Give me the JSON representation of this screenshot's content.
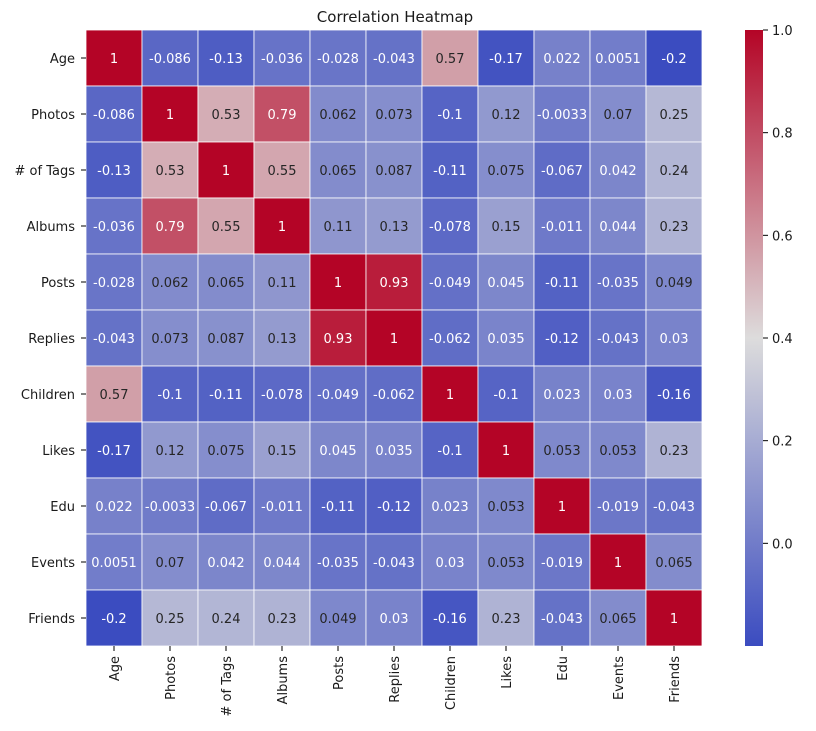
{
  "chart_data": {
    "type": "heatmap",
    "title": "Correlation Heatmap",
    "xlabel": "",
    "ylabel": "",
    "colormap": "coolwarm",
    "colormap_stops": [
      "#3b4cc0",
      "#dddcdc",
      "#b40426"
    ],
    "grid_line_color": "#ffffff",
    "vmin": -0.2,
    "vmax": 1.0,
    "annotations": true,
    "labels": [
      "Age",
      "Photos",
      "# of Tags",
      "Albums",
      "Posts",
      "Replies",
      "Children",
      "Likes",
      "Edu",
      "Events",
      "Friends"
    ],
    "matrix": [
      [
        "1",
        "-0.086",
        "-0.13",
        "-0.036",
        "-0.028",
        "-0.043",
        "0.57",
        "-0.17",
        "0.022",
        "0.0051",
        "-0.2"
      ],
      [
        "-0.086",
        "1",
        "0.53",
        "0.79",
        "0.062",
        "0.073",
        "-0.1",
        "0.12",
        "-0.0033",
        "0.07",
        "0.25"
      ],
      [
        "-0.13",
        "0.53",
        "1",
        "0.55",
        "0.065",
        "0.087",
        "-0.11",
        "0.075",
        "-0.067",
        "0.042",
        "0.24"
      ],
      [
        "-0.036",
        "0.79",
        "0.55",
        "1",
        "0.11",
        "0.13",
        "-0.078",
        "0.15",
        "-0.011",
        "0.044",
        "0.23"
      ],
      [
        "-0.028",
        "0.062",
        "0.065",
        "0.11",
        "1",
        "0.93",
        "-0.049",
        "0.045",
        "-0.11",
        "-0.035",
        "0.049"
      ],
      [
        "-0.043",
        "0.073",
        "0.087",
        "0.13",
        "0.93",
        "1",
        "-0.062",
        "0.035",
        "-0.12",
        "-0.043",
        "0.03"
      ],
      [
        "0.57",
        "-0.1",
        "-0.11",
        "-0.078",
        "-0.049",
        "-0.062",
        "1",
        "-0.1",
        "0.023",
        "0.03",
        "-0.16"
      ],
      [
        "-0.17",
        "0.12",
        "0.075",
        "0.15",
        "0.045",
        "0.035",
        "-0.1",
        "1",
        "0.053",
        "0.053",
        "0.23"
      ],
      [
        "0.022",
        "-0.0033",
        "-0.067",
        "-0.011",
        "-0.11",
        "-0.12",
        "0.023",
        "0.053",
        "1",
        "-0.019",
        "-0.043"
      ],
      [
        "0.0051",
        "0.07",
        "0.042",
        "0.044",
        "-0.035",
        "-0.043",
        "0.03",
        "0.053",
        "-0.019",
        "1",
        "0.065"
      ],
      [
        "-0.2",
        "0.25",
        "0.24",
        "0.23",
        "0.049",
        "0.03",
        "-0.16",
        "0.23",
        "-0.043",
        "0.065",
        "1"
      ]
    ],
    "colorbar": {
      "ticks": [
        0.0,
        0.2,
        0.4,
        0.6,
        0.8,
        1.0
      ],
      "tick_labels": [
        "0.0",
        "0.2",
        "0.4",
        "0.6",
        "0.8",
        "1.0"
      ]
    }
  }
}
